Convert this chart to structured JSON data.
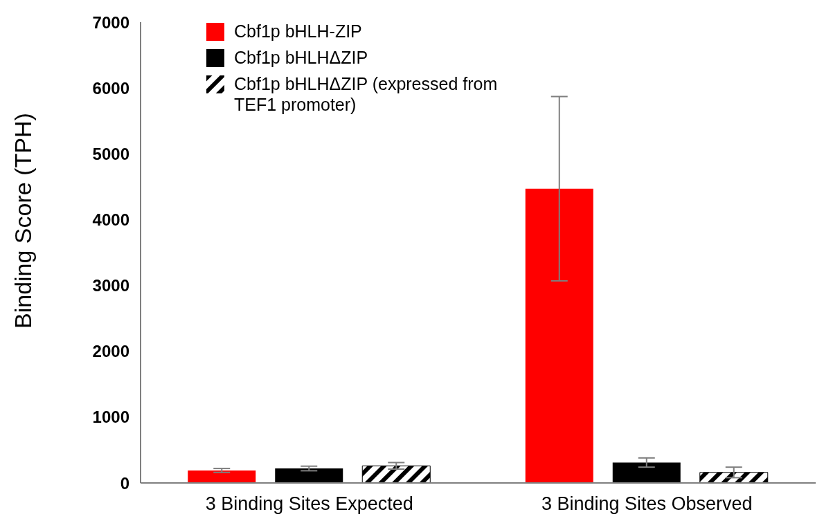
{
  "chart_data": {
    "type": "bar",
    "categories": [
      "3 Binding Sites Expected",
      "3 Binding Sites Observed"
    ],
    "ylabel": "Binding Score (TPH)",
    "ylim": [
      0,
      7000
    ],
    "yticks": [
      0,
      1000,
      2000,
      3000,
      4000,
      5000,
      6000,
      7000
    ],
    "grid": false,
    "legend": "top left",
    "series": [
      {
        "name": "Cbf1p bHLH-ZIP",
        "color": "#ff0000",
        "values": [
          190,
          4470
        ],
        "errors": [
          30,
          1400
        ]
      },
      {
        "name": "Cbf1p bHLHΔZIP",
        "color": "#000000",
        "values": [
          220,
          310
        ],
        "errors": [
          35,
          70
        ]
      },
      {
        "name": "Cbf1p bHLHΔZIP (expressed from TEF1 promoter)",
        "color": "#000000",
        "values": [
          260,
          160
        ],
        "errors": [
          50,
          80
        ]
      }
    ]
  }
}
